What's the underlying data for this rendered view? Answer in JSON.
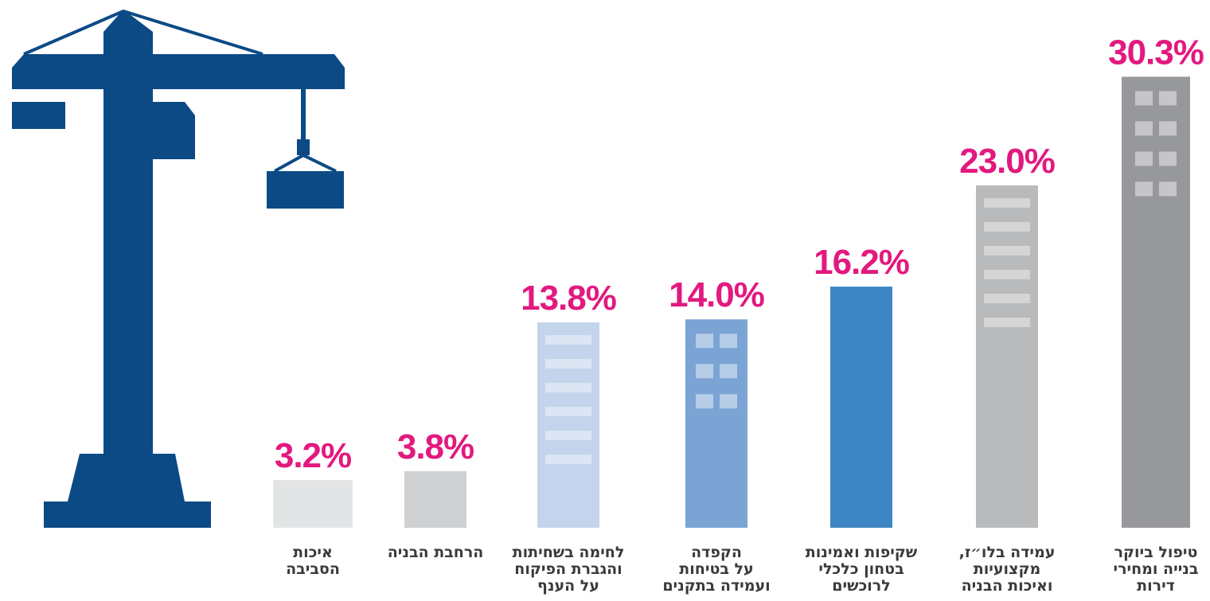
{
  "chart_data": {
    "type": "bar",
    "categories": [
      "איכות\nהסביבה",
      "הרחבת הבניה",
      "לחימה בשחיתות\nוהגברת הפיקוח\nעל הענף",
      "הקפדה\nעל בטיחות\nועמידה בתקנים",
      "שקיפות ואמינות\nבטחון כלכלי\nלרוכשים",
      "עמידה בלו״ז,\nמקצועיות\nואיכות הבניה",
      "טיפול ביוקר\nבנייה ומחירי\nדירות"
    ],
    "values": [
      3.2,
      3.8,
      13.8,
      14.0,
      16.2,
      23.0,
      30.3
    ],
    "value_labels": [
      "3.2%",
      "3.8%",
      "13.8%",
      "14.0%",
      "16.2%",
      "23.0%",
      "30.3%"
    ],
    "colors": [
      "#e3e4e5",
      "#cfd0d1",
      "#c3d4ec",
      "#7ba4d5",
      "#3e86c3",
      "#b9babb",
      "#97989b"
    ]
  }
}
